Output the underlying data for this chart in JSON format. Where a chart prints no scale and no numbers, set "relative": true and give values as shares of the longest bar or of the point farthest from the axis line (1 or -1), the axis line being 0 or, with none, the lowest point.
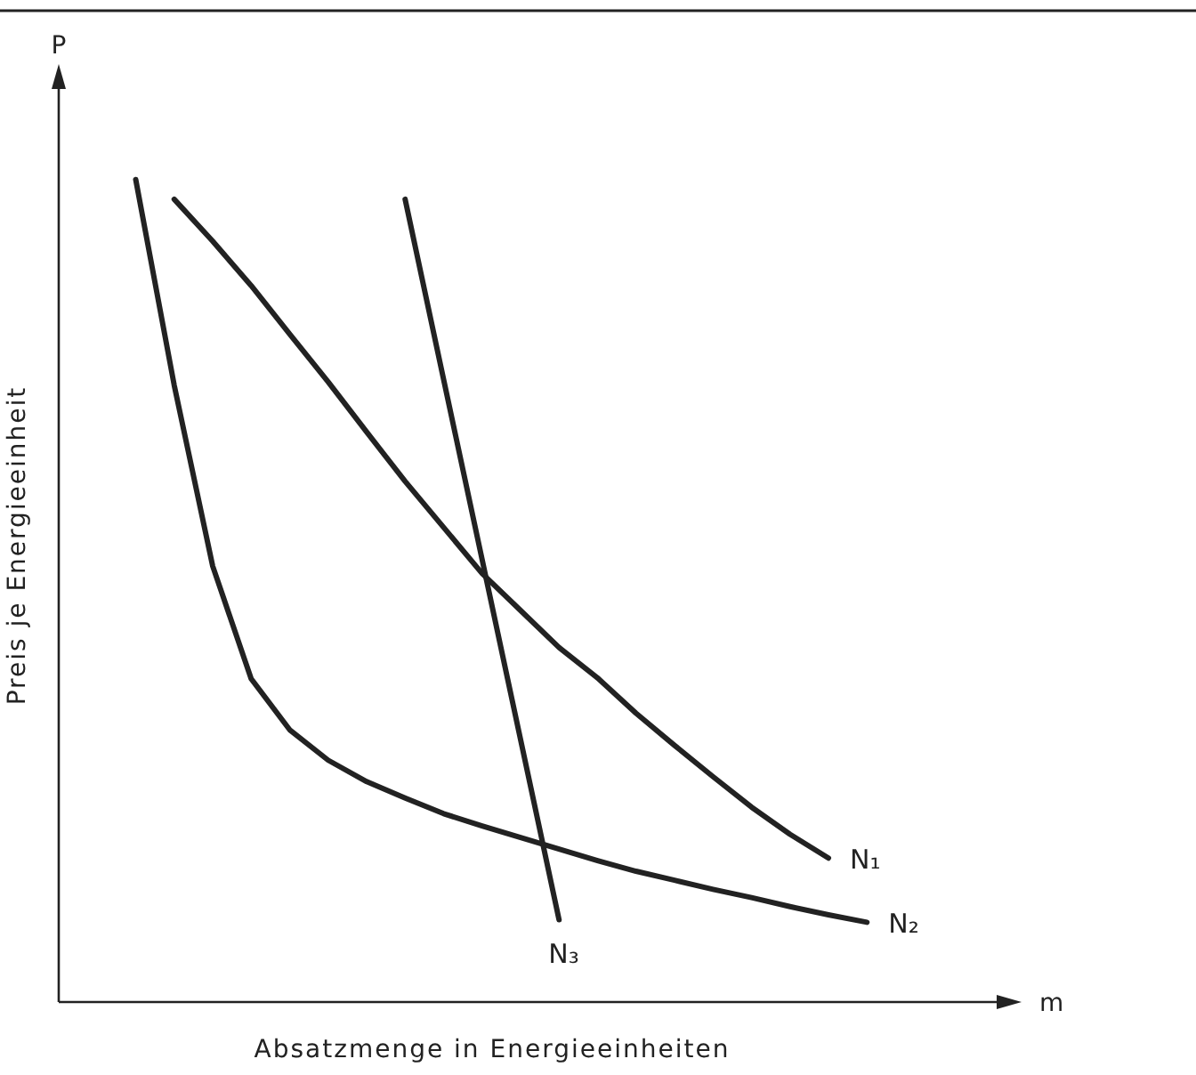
{
  "chart_data": {
    "type": "line",
    "relative": true,
    "xlabel": "Absatzmenge in Energieeinheiten",
    "ylabel": "Preis je Energieeinheit",
    "annotations": [
      "P",
      "m"
    ],
    "categories": [
      null,
      null,
      null,
      null,
      null,
      null,
      null,
      null,
      null,
      null,
      null,
      null,
      null,
      null,
      null,
      null,
      null,
      null,
      null,
      null,
      null,
      null,
      null,
      null,
      null
    ],
    "legend": false,
    "marker": "none",
    "line_style": "solid",
    "series": [
      {
        "name": "N₁",
        "color": "#222222",
        "values": [
          null,
          null,
          null,
          0.976,
          0.925,
          0.871,
          0.812,
          0.754,
          0.693,
          0.633,
          0.577,
          0.521,
          0.476,
          0.431,
          0.394,
          0.351,
          0.312,
          0.274,
          0.237,
          0.204,
          0.175,
          null,
          null,
          null,
          null
        ]
      },
      {
        "name": "N₂",
        "color": "#222222",
        "values": [
          null,
          null,
          1.0,
          0.75,
          0.53,
          0.393,
          0.331,
          0.294,
          0.268,
          0.248,
          0.229,
          0.214,
          0.2,
          0.186,
          0.172,
          0.159,
          0.148,
          0.137,
          0.127,
          0.116,
          0.106,
          0.097,
          null,
          null,
          null
        ]
      },
      {
        "name": "N₃",
        "color": "#222222",
        "values": [
          null,
          null,
          null,
          null,
          null,
          null,
          null,
          null,
          null,
          0.976,
          0.757,
          0.538,
          0.319,
          0.1,
          null,
          null,
          null,
          null,
          null,
          null,
          null,
          null,
          null,
          null,
          null
        ]
      }
    ]
  }
}
